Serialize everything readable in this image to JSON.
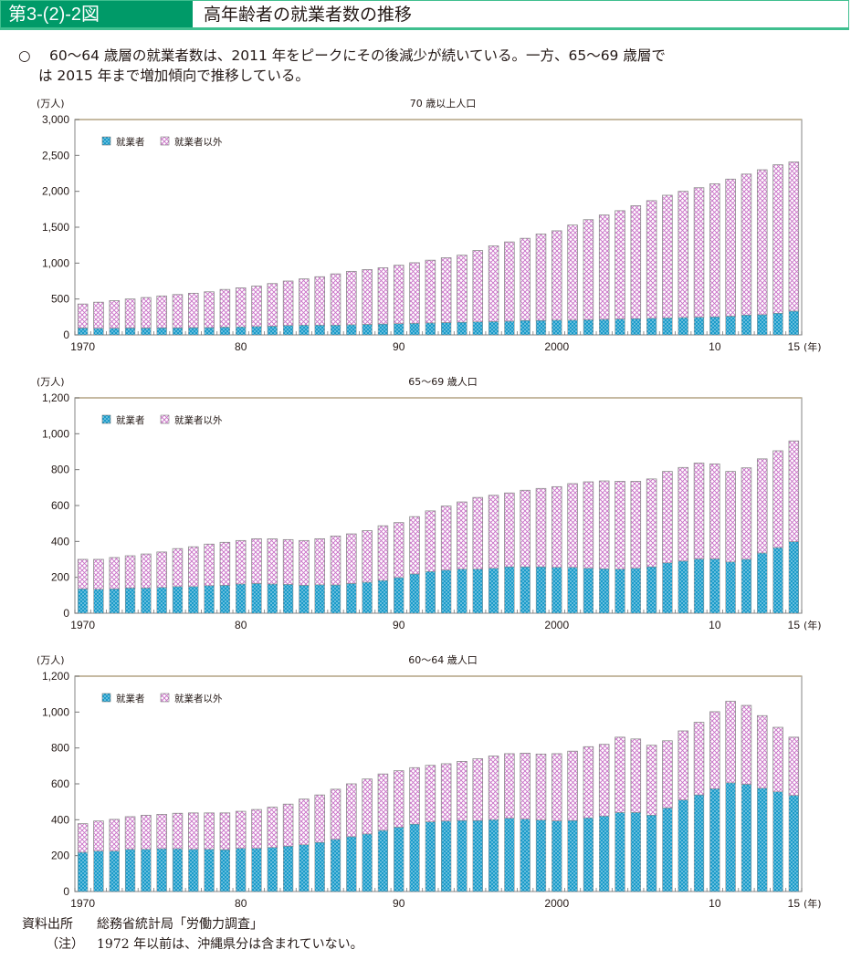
{
  "header": {
    "figure_number": "第3-(2)-2図",
    "title": "高年齢者の就業者数の推移"
  },
  "summary": {
    "bullet": "○",
    "line1": "60～64 歳層の就業者数は、2011 年をピークにその後減少が続いている。一方、65～69 歳層で",
    "line2": "は 2015 年まで増加傾向で推移している。"
  },
  "colors": {
    "employed": "#1a9bc9",
    "not_employed": "#c86fc6",
    "header_green": "#009a68"
  },
  "chart_data": [
    {
      "type": "bar",
      "stacked": true,
      "title": "70 歳以上人口",
      "ylabel": "(万人)",
      "xlabel": "(年)",
      "ylim": [
        0,
        3000
      ],
      "yticks": [
        0,
        500,
        1000,
        1500,
        2000,
        2500,
        3000
      ],
      "ytick_labels": [
        "0",
        "500",
        "1,000",
        "1,500",
        "2,000",
        "2,500",
        "3,000"
      ],
      "xtick_labels": [
        {
          "year": 1970,
          "label": "1970"
        },
        {
          "year": 1980,
          "label": "80"
        },
        {
          "year": 1990,
          "label": "90"
        },
        {
          "year": 2000,
          "label": "2000"
        },
        {
          "year": 2010,
          "label": "10"
        },
        {
          "year": 2015,
          "label": "15"
        }
      ],
      "legend": [
        "就業者",
        "就業者以外"
      ],
      "legend_position": "top-left",
      "x": [
        1970,
        1971,
        1972,
        1973,
        1974,
        1975,
        1976,
        1977,
        1978,
        1979,
        1980,
        1981,
        1982,
        1983,
        1984,
        1985,
        1986,
        1987,
        1988,
        1989,
        1990,
        1991,
        1992,
        1993,
        1994,
        1995,
        1996,
        1997,
        1998,
        1999,
        2000,
        2001,
        2002,
        2003,
        2004,
        2005,
        2006,
        2007,
        2008,
        2009,
        2010,
        2011,
        2012,
        2013,
        2014,
        2015
      ],
      "series": [
        {
          "name": "就業者",
          "values": [
            95,
            90,
            92,
            95,
            95,
            97,
            97,
            100,
            100,
            108,
            110,
            115,
            120,
            130,
            135,
            135,
            135,
            140,
            145,
            150,
            155,
            160,
            165,
            170,
            175,
            180,
            185,
            190,
            200,
            200,
            205,
            205,
            210,
            215,
            220,
            225,
            230,
            235,
            240,
            245,
            250,
            260,
            275,
            280,
            300,
            330
          ]
        },
        {
          "name": "就業者以外",
          "values": [
            335,
            365,
            385,
            405,
            425,
            445,
            465,
            480,
            500,
            525,
            545,
            565,
            595,
            620,
            645,
            675,
            715,
            745,
            765,
            785,
            815,
            845,
            875,
            905,
            935,
            995,
            1055,
            1105,
            1145,
            1205,
            1245,
            1325,
            1395,
            1455,
            1510,
            1575,
            1640,
            1710,
            1760,
            1805,
            1855,
            1910,
            1965,
            2020,
            2070,
            2080
          ]
        }
      ]
    },
    {
      "type": "bar",
      "stacked": true,
      "title": "65～69 歳人口",
      "ylabel": "(万人)",
      "xlabel": "(年)",
      "ylim": [
        0,
        1200
      ],
      "yticks": [
        0,
        200,
        400,
        600,
        800,
        1000,
        1200
      ],
      "ytick_labels": [
        "0",
        "200",
        "400",
        "600",
        "800",
        "1,000",
        "1,200"
      ],
      "xtick_labels": [
        {
          "year": 1970,
          "label": "1970"
        },
        {
          "year": 1980,
          "label": "80"
        },
        {
          "year": 1990,
          "label": "90"
        },
        {
          "year": 2000,
          "label": "2000"
        },
        {
          "year": 2010,
          "label": "10"
        },
        {
          "year": 2015,
          "label": "15"
        }
      ],
      "legend": [
        "就業者",
        "就業者以外"
      ],
      "legend_position": "top-left",
      "x": [
        1970,
        1971,
        1972,
        1973,
        1974,
        1975,
        1976,
        1977,
        1978,
        1979,
        1980,
        1981,
        1982,
        1983,
        1984,
        1985,
        1986,
        1987,
        1988,
        1989,
        1990,
        1991,
        1992,
        1993,
        1994,
        1995,
        1996,
        1997,
        1998,
        1999,
        2000,
        2001,
        2002,
        2003,
        2004,
        2005,
        2006,
        2007,
        2008,
        2009,
        2010,
        2011,
        2012,
        2013,
        2014,
        2015
      ],
      "series": [
        {
          "name": "就業者",
          "values": [
            135,
            133,
            135,
            140,
            140,
            143,
            148,
            148,
            153,
            155,
            162,
            165,
            162,
            160,
            155,
            158,
            157,
            165,
            172,
            182,
            198,
            218,
            232,
            240,
            245,
            245,
            250,
            258,
            258,
            258,
            255,
            255,
            250,
            247,
            245,
            250,
            258,
            280,
            290,
            302,
            302,
            285,
            300,
            335,
            365,
            398
          ]
        },
        {
          "name": "就業者以外",
          "values": [
            165,
            167,
            175,
            180,
            190,
            198,
            212,
            222,
            232,
            240,
            243,
            250,
            252,
            250,
            250,
            257,
            273,
            277,
            288,
            305,
            307,
            320,
            338,
            357,
            375,
            400,
            407,
            412,
            427,
            437,
            450,
            467,
            482,
            490,
            490,
            485,
            490,
            510,
            522,
            535,
            530,
            505,
            510,
            525,
            540,
            562
          ]
        }
      ]
    },
    {
      "type": "bar",
      "stacked": true,
      "title": "60～64 歳人口",
      "ylabel": "(万人)",
      "xlabel": "(年)",
      "ylim": [
        0,
        1200
      ],
      "yticks": [
        0,
        200,
        400,
        600,
        800,
        1000,
        1200
      ],
      "ytick_labels": [
        "0",
        "200",
        "400",
        "600",
        "800",
        "1,000",
        "1,200"
      ],
      "xtick_labels": [
        {
          "year": 1970,
          "label": "1970"
        },
        {
          "year": 1980,
          "label": "80"
        },
        {
          "year": 1990,
          "label": "90"
        },
        {
          "year": 2000,
          "label": "2000"
        },
        {
          "year": 2010,
          "label": "10"
        },
        {
          "year": 2015,
          "label": "15"
        }
      ],
      "legend": [
        "就業者",
        "就業者以外"
      ],
      "legend_position": "top-left",
      "x": [
        1970,
        1971,
        1972,
        1973,
        1974,
        1975,
        1976,
        1977,
        1978,
        1979,
        1980,
        1981,
        1982,
        1983,
        1984,
        1985,
        1986,
        1987,
        1988,
        1989,
        1990,
        1991,
        1992,
        1993,
        1994,
        1995,
        1996,
        1997,
        1998,
        1999,
        2000,
        2001,
        2002,
        2003,
        2004,
        2005,
        2006,
        2007,
        2008,
        2009,
        2010,
        2011,
        2012,
        2013,
        2014,
        2015
      ],
      "series": [
        {
          "name": "就業者",
          "values": [
            218,
            225,
            225,
            235,
            235,
            238,
            238,
            235,
            235,
            233,
            240,
            240,
            245,
            252,
            260,
            273,
            290,
            305,
            320,
            340,
            358,
            375,
            388,
            392,
            395,
            395,
            400,
            408,
            403,
            398,
            393,
            395,
            410,
            420,
            440,
            440,
            425,
            465,
            510,
            538,
            572,
            605,
            597,
            575,
            555,
            535
          ]
        },
        {
          "name": "就業者以外",
          "values": [
            160,
            168,
            177,
            182,
            190,
            192,
            198,
            203,
            203,
            205,
            207,
            217,
            225,
            235,
            255,
            265,
            280,
            295,
            307,
            315,
            315,
            315,
            315,
            320,
            330,
            345,
            355,
            360,
            368,
            368,
            375,
            387,
            397,
            400,
            420,
            410,
            390,
            375,
            385,
            405,
            430,
            455,
            440,
            405,
            360,
            325
          ]
        }
      ]
    }
  ],
  "footer": {
    "source_label": "資料出所",
    "source_text": "総務省統計局「労働力調査」",
    "note_label": "（注）",
    "note_text": "1972 年以前は、沖縄県分は含まれていない。"
  }
}
